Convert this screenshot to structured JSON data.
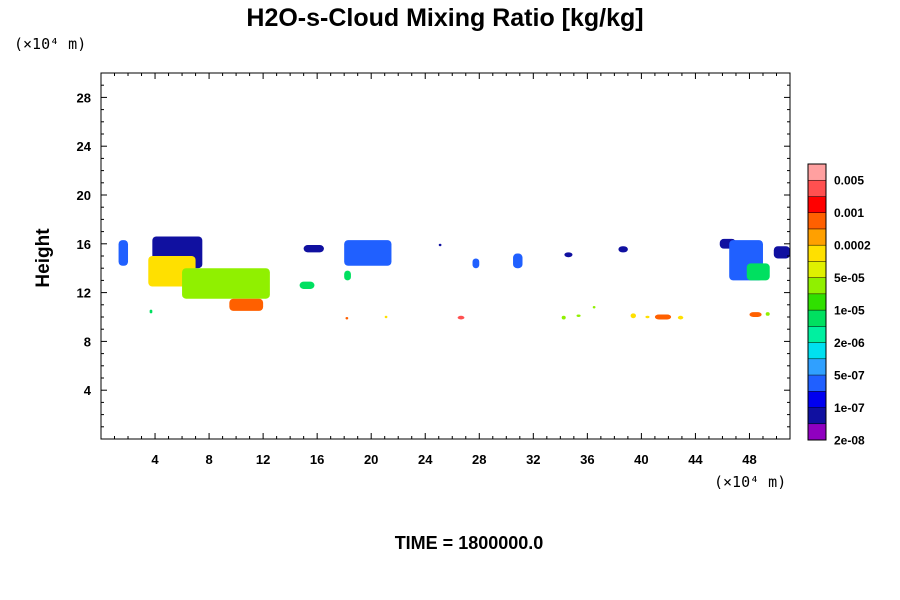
{
  "chart_data": {
    "type": "heatmap",
    "title": "H2O-s-Cloud Mixing Ratio [kg/kg]",
    "ylabel": "Height",
    "y_unit": "(×10⁴ m)",
    "x_unit": "(×10⁴ m)",
    "xlim": [
      0,
      51
    ],
    "ylim": [
      0,
      30
    ],
    "x_ticks": [
      "4",
      "8",
      "12",
      "16",
      "20",
      "24",
      "28",
      "32",
      "36",
      "40",
      "44",
      "48"
    ],
    "y_ticks": [
      "4",
      "8",
      "12",
      "16",
      "20",
      "24",
      "28"
    ],
    "time_label": "TIME = 1800000.0",
    "colorbar": {
      "labels": [
        "0.005",
        "0.001",
        "0.0002",
        "5e-05",
        "1e-05",
        "2e-06",
        "5e-07",
        "1e-07",
        "2e-08"
      ],
      "colors": [
        "#9000c0",
        "#1010a0",
        "#0000f0",
        "#2060ff",
        "#30a0ff",
        "#00e0f0",
        "#00f0a0",
        "#00e060",
        "#30e000",
        "#90f000",
        "#e0f000",
        "#ffe000",
        "#ffa000",
        "#ff6000",
        "#ff0000",
        "#ff5050",
        "#ffa0a0"
      ]
    },
    "cloud_features": [
      {
        "x": [
          1.3,
          2.0
        ],
        "y": [
          14.2,
          16.3
        ],
        "level": "1e-07"
      },
      {
        "x": [
          3.8,
          7.5
        ],
        "y": [
          14.0,
          16.6
        ],
        "level": "2e-08"
      },
      {
        "x": [
          3.5,
          7.0
        ],
        "y": [
          12.5,
          15.0
        ],
        "level": "5e-05"
      },
      {
        "x": [
          6.0,
          12.5
        ],
        "y": [
          11.5,
          14.0
        ],
        "level": "1e-05"
      },
      {
        "x": [
          9.5,
          12.0
        ],
        "y": [
          10.5,
          11.5
        ],
        "level": "0.0002"
      },
      {
        "x": [
          14.7,
          15.8
        ],
        "y": [
          12.3,
          12.9
        ],
        "level": "2e-06"
      },
      {
        "x": [
          15.0,
          16.5
        ],
        "y": [
          15.3,
          15.9
        ],
        "level": "2e-08"
      },
      {
        "x": [
          18.0,
          21.5
        ],
        "y": [
          14.2,
          16.3
        ],
        "level": "1e-07"
      },
      {
        "x": [
          18.0,
          18.5
        ],
        "y": [
          13.0,
          13.8
        ],
        "level": "2e-06"
      },
      {
        "x": [
          25.0,
          25.2
        ],
        "y": [
          15.8,
          16.0
        ],
        "level": "2e-08"
      },
      {
        "x": [
          27.5,
          28.0
        ],
        "y": [
          14.0,
          14.8
        ],
        "level": "1e-07"
      },
      {
        "x": [
          30.5,
          31.2
        ],
        "y": [
          14.0,
          15.2
        ],
        "level": "1e-07"
      },
      {
        "x": [
          34.3,
          34.9
        ],
        "y": [
          14.9,
          15.3
        ],
        "level": "2e-08"
      },
      {
        "x": [
          38.3,
          39.0
        ],
        "y": [
          15.3,
          15.8
        ],
        "level": "2e-08"
      },
      {
        "x": [
          45.8,
          47.0
        ],
        "y": [
          15.6,
          16.4
        ],
        "level": "2e-08"
      },
      {
        "x": [
          46.5,
          49.0
        ],
        "y": [
          13.0,
          16.3
        ],
        "level": "1e-07"
      },
      {
        "x": [
          47.8,
          49.5
        ],
        "y": [
          13.0,
          14.4
        ],
        "level": "2e-06"
      },
      {
        "x": [
          49.8,
          51.0
        ],
        "y": [
          14.8,
          15.8
        ],
        "level": "2e-08"
      },
      {
        "x": [
          3.6,
          3.8
        ],
        "y": [
          10.3,
          10.6
        ],
        "level": "2e-06"
      },
      {
        "x": [
          18.1,
          18.3
        ],
        "y": [
          9.8,
          10.0
        ],
        "level": "0.0002"
      },
      {
        "x": [
          21.0,
          21.2
        ],
        "y": [
          9.9,
          10.1
        ],
        "level": "5e-05"
      },
      {
        "x": [
          26.4,
          26.9
        ],
        "y": [
          9.8,
          10.1
        ],
        "level": "0.001"
      },
      {
        "x": [
          34.1,
          34.4
        ],
        "y": [
          9.8,
          10.1
        ],
        "level": "1e-05"
      },
      {
        "x": [
          35.2,
          35.5
        ],
        "y": [
          10.0,
          10.2
        ],
        "level": "1e-05"
      },
      {
        "x": [
          36.4,
          36.6
        ],
        "y": [
          10.7,
          10.9
        ],
        "level": "1e-05"
      },
      {
        "x": [
          39.2,
          39.6
        ],
        "y": [
          9.9,
          10.3
        ],
        "level": "5e-05"
      },
      {
        "x": [
          40.3,
          40.6
        ],
        "y": [
          9.9,
          10.1
        ],
        "level": "5e-05"
      },
      {
        "x": [
          41.0,
          42.2
        ],
        "y": [
          9.8,
          10.2
        ],
        "level": "0.0002"
      },
      {
        "x": [
          42.7,
          43.1
        ],
        "y": [
          9.8,
          10.1
        ],
        "level": "5e-05"
      },
      {
        "x": [
          48.0,
          48.9
        ],
        "y": [
          10.0,
          10.4
        ],
        "level": "0.0002"
      },
      {
        "x": [
          49.2,
          49.5
        ],
        "y": [
          10.1,
          10.4
        ],
        "level": "1e-05"
      }
    ]
  }
}
